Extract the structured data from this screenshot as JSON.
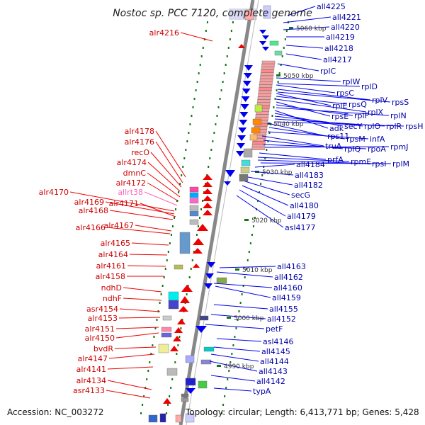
{
  "title": "Nostoc sp. PCC 7120, complete genome",
  "footer": {
    "accession": "Accession: NC_003272",
    "summary": "Topology: circular; Length: 6,413,771 bp; Genes: 5,428"
  },
  "colors": {
    "forward": "#ee0000",
    "reverse": "#0000ee",
    "pseudo": "#ff66bb",
    "backbone": "#888888",
    "tick": "#117711"
  },
  "left_labels": [
    "alr4216",
    "alr4178",
    "alr4176",
    "recO",
    "alr4174",
    "dmnC",
    "alr4172",
    "allrt38",
    "alr4170",
    "alr4169",
    "alr4171",
    "alr4168",
    "alr4167",
    "alr4166",
    "alr4165",
    "alr4164",
    "alr4161",
    "alr4158",
    "ndhD",
    "ndhF",
    "asr4154",
    "alr4153",
    "alr4151",
    "alr4150",
    "bvdR",
    "alr4147",
    "alr4141",
    "alr4134",
    "asr4133"
  ],
  "right_labels": [
    "all4225",
    "all4221",
    "all4220",
    "all4219",
    "all4218",
    "all4217",
    "rplC",
    "rplW",
    "rplD",
    "rpsC",
    "rplV",
    "rpsS",
    "rplE",
    "rpsQ",
    "rplX",
    "rpsE",
    "rplF",
    "rplN",
    "adk",
    "secY",
    "rplO",
    "rplR",
    "rpsH",
    "rps11",
    "rpsM",
    "infA",
    "truA",
    "rplQ",
    "rpoA",
    "rpmJ",
    "prfA",
    "rpmE",
    "rpsI",
    "rplM",
    "all4184",
    "all4183",
    "all4182",
    "secG",
    "all4180",
    "all4179",
    "asl4177",
    "all4163",
    "all4162",
    "all4160",
    "all4159",
    "all4155",
    "all4152",
    "petF",
    "asl4146",
    "all4145",
    "all4144",
    "all4143",
    "all4142",
    "typA"
  ],
  "position_labels": [
    "5060 kbp",
    "5050 kbp",
    "5040 kbp",
    "5030 kbp",
    "5020 kbp",
    "5010 kbp",
    "5000 kbp",
    "4990 kbp"
  ]
}
